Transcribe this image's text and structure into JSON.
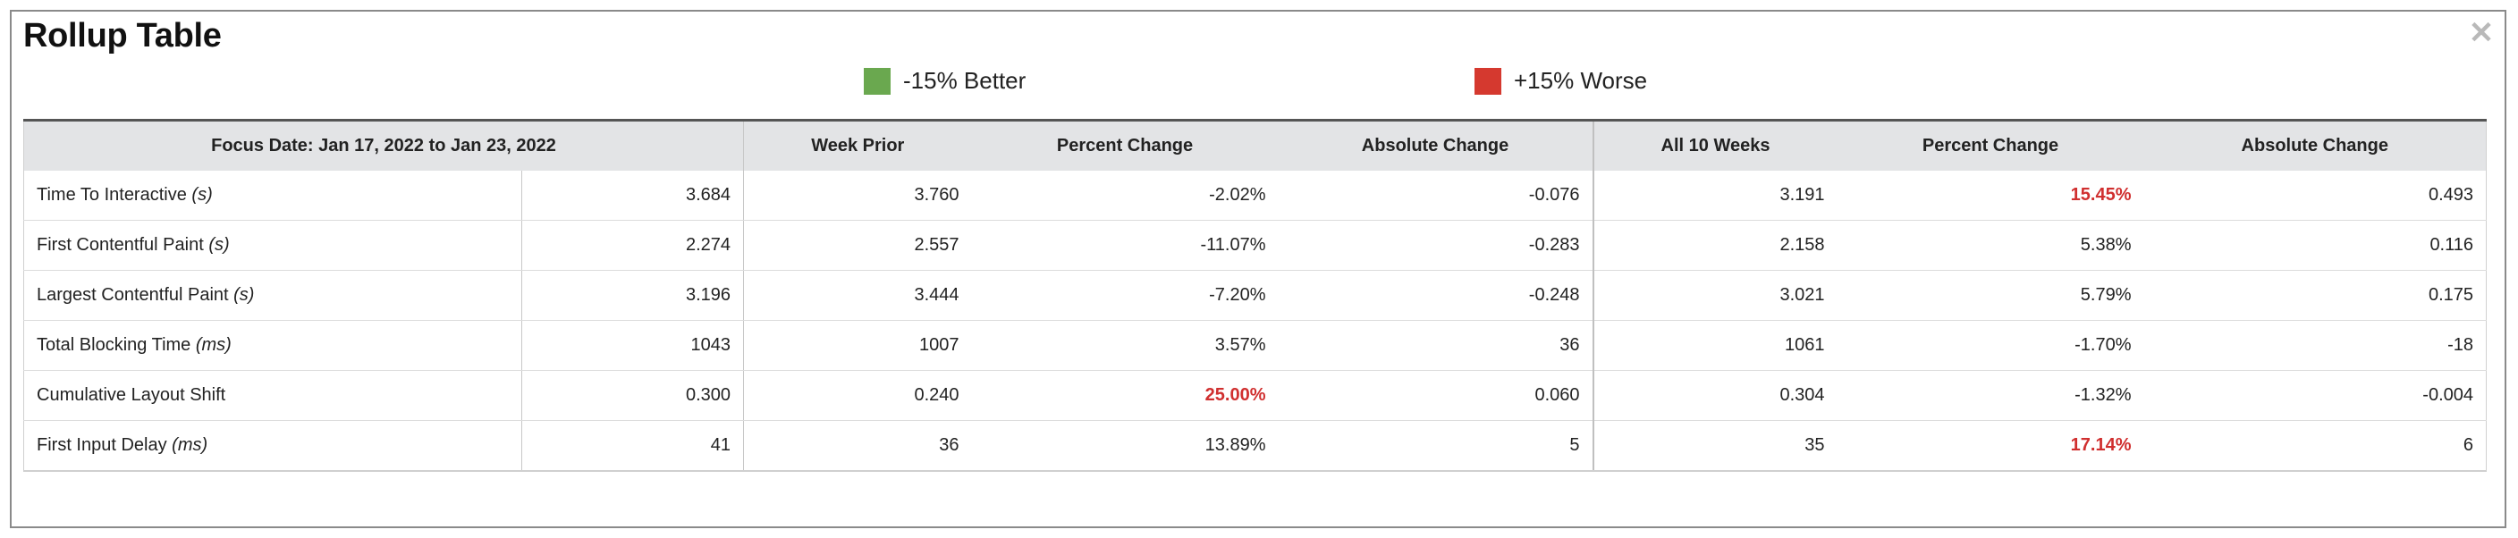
{
  "dialog": {
    "title": "Rollup Table",
    "close_icon": "close-icon"
  },
  "legend": {
    "better": {
      "label": "-15% Better",
      "color": "#6aa84f"
    },
    "worse": {
      "label": "+15% Worse",
      "color": "#d5392f"
    }
  },
  "table": {
    "headers": {
      "focus": "Focus Date: Jan 17, 2022 to Jan 23, 2022",
      "week_prior": "Week Prior",
      "pct_change_1": "Percent Change",
      "abs_change_1": "Absolute Change",
      "all_weeks": "All 10 Weeks",
      "pct_change_2": "Percent Change",
      "abs_change_2": "Absolute Change"
    },
    "rows": [
      {
        "metric": "Time To Interactive ",
        "unit": "(s)",
        "focus": "3.684",
        "week_prior": "3.760",
        "pct1": "-2.02%",
        "abs1": "-0.076",
        "all": "3.191",
        "pct2": "15.45%",
        "abs2": "0.493"
      },
      {
        "metric": "First Contentful Paint ",
        "unit": "(s)",
        "focus": "2.274",
        "week_prior": "2.557",
        "pct1": "-11.07%",
        "abs1": "-0.283",
        "all": "2.158",
        "pct2": "5.38%",
        "abs2": "0.116"
      },
      {
        "metric": "Largest Contentful Paint ",
        "unit": "(s)",
        "focus": "3.196",
        "week_prior": "3.444",
        "pct1": "-7.20%",
        "abs1": "-0.248",
        "all": "3.021",
        "pct2": "5.79%",
        "abs2": "0.175"
      },
      {
        "metric": "Total Blocking Time ",
        "unit": "(ms)",
        "focus": "1043",
        "week_prior": "1007",
        "pct1": "3.57%",
        "abs1": "36",
        "all": "1061",
        "pct2": "-1.70%",
        "abs2": "-18"
      },
      {
        "metric": "Cumulative Layout Shift",
        "unit": "",
        "focus": "0.300",
        "week_prior": "0.240",
        "pct1": "25.00%",
        "abs1": "0.060",
        "all": "0.304",
        "pct2": "-1.32%",
        "abs2": "-0.004"
      },
      {
        "metric": "First Input Delay ",
        "unit": "(ms)",
        "focus": "41",
        "week_prior": "36",
        "pct1": "13.89%",
        "abs1": "5",
        "all": "35",
        "pct2": "17.14%",
        "abs2": "6"
      }
    ]
  }
}
